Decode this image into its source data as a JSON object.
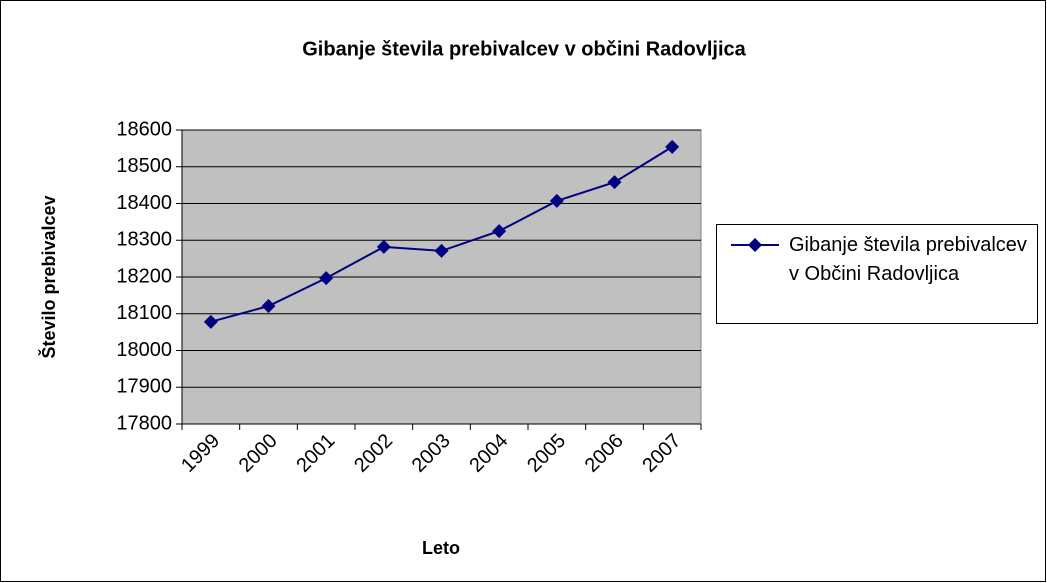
{
  "chart_data": {
    "type": "line",
    "title": "Gibanje števila prebivalcev v občini Radovljica",
    "x_label": "Leto",
    "y_label": "Število prebivalcev",
    "categories": [
      "1999",
      "2000",
      "2001",
      "2002",
      "2003",
      "2004",
      "2005",
      "2006",
      "2007"
    ],
    "series": [
      {
        "name": "Gibanje števila prebivalcev v Občini Radovljica",
        "color": "#000080",
        "values": [
          18078,
          18121,
          18197,
          18282,
          18271,
          18325,
          18407,
          18458,
          18554
        ]
      }
    ],
    "ylim": [
      17800,
      18600
    ],
    "yticks": [
      17800,
      17900,
      18000,
      18100,
      18200,
      18300,
      18400,
      18500,
      18600
    ],
    "grid": true,
    "legend": "right"
  }
}
